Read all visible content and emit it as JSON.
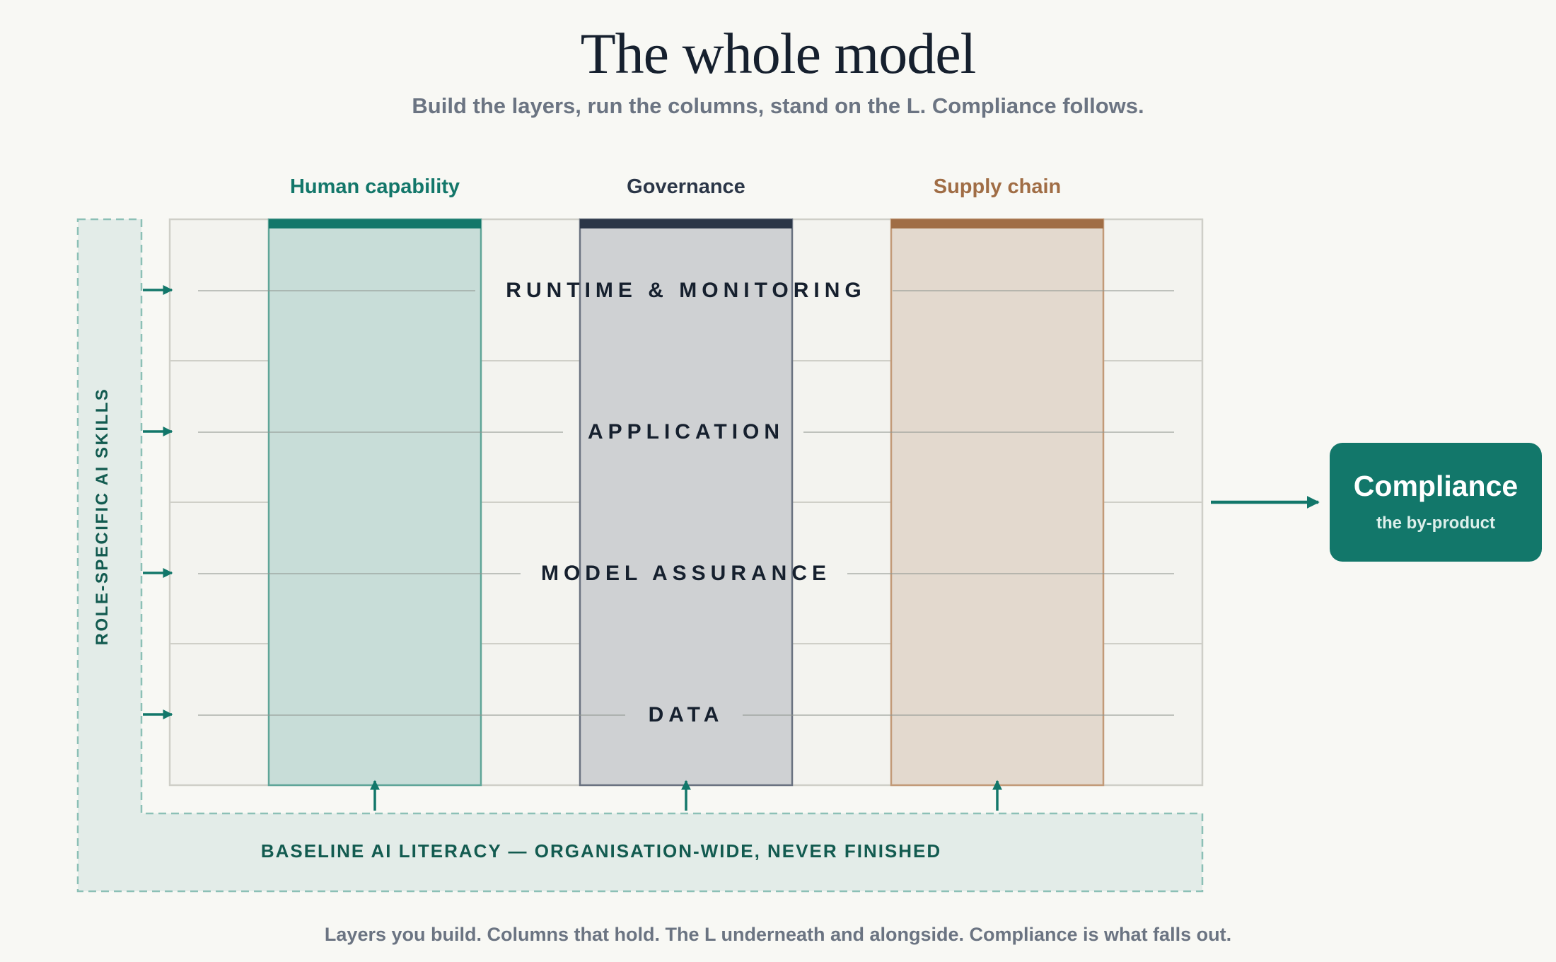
{
  "header": {
    "title": "The whole model",
    "subtitle": "Build the layers, run the columns, stand on the L. Compliance follows."
  },
  "columns": [
    {
      "label": "Human capability",
      "color": "#13776a",
      "fill": "#c8ddd8",
      "stroke": "#5fa598"
    },
    {
      "label": "Governance",
      "color": "#2b3647",
      "fill": "#cfd1d3",
      "stroke": "#6a7280"
    },
    {
      "label": "Supply chain",
      "color": "#a06d45",
      "fill": "#e3d9ce",
      "stroke": "#c29a78"
    }
  ],
  "layers": [
    {
      "label": "RUNTIME & MONITORING"
    },
    {
      "label": "APPLICATION"
    },
    {
      "label": "MODEL ASSURANCE"
    },
    {
      "label": "DATA"
    }
  ],
  "l_shape": {
    "side_label": "ROLE-SPECIFIC AI SKILLS",
    "bottom_label": "BASELINE AI LITERACY — ORGANISATION-WIDE, NEVER FINISHED"
  },
  "output": {
    "title": "Compliance",
    "subtitle": "the by-product"
  },
  "footer": "Layers you build. Columns that hold. The L underneath and alongside. Compliance is what falls out.",
  "colors": {
    "accent": "#12776a",
    "background": "#f8f8f4",
    "l_fill": "#e3ece8",
    "l_stroke": "#8cc0b6"
  }
}
